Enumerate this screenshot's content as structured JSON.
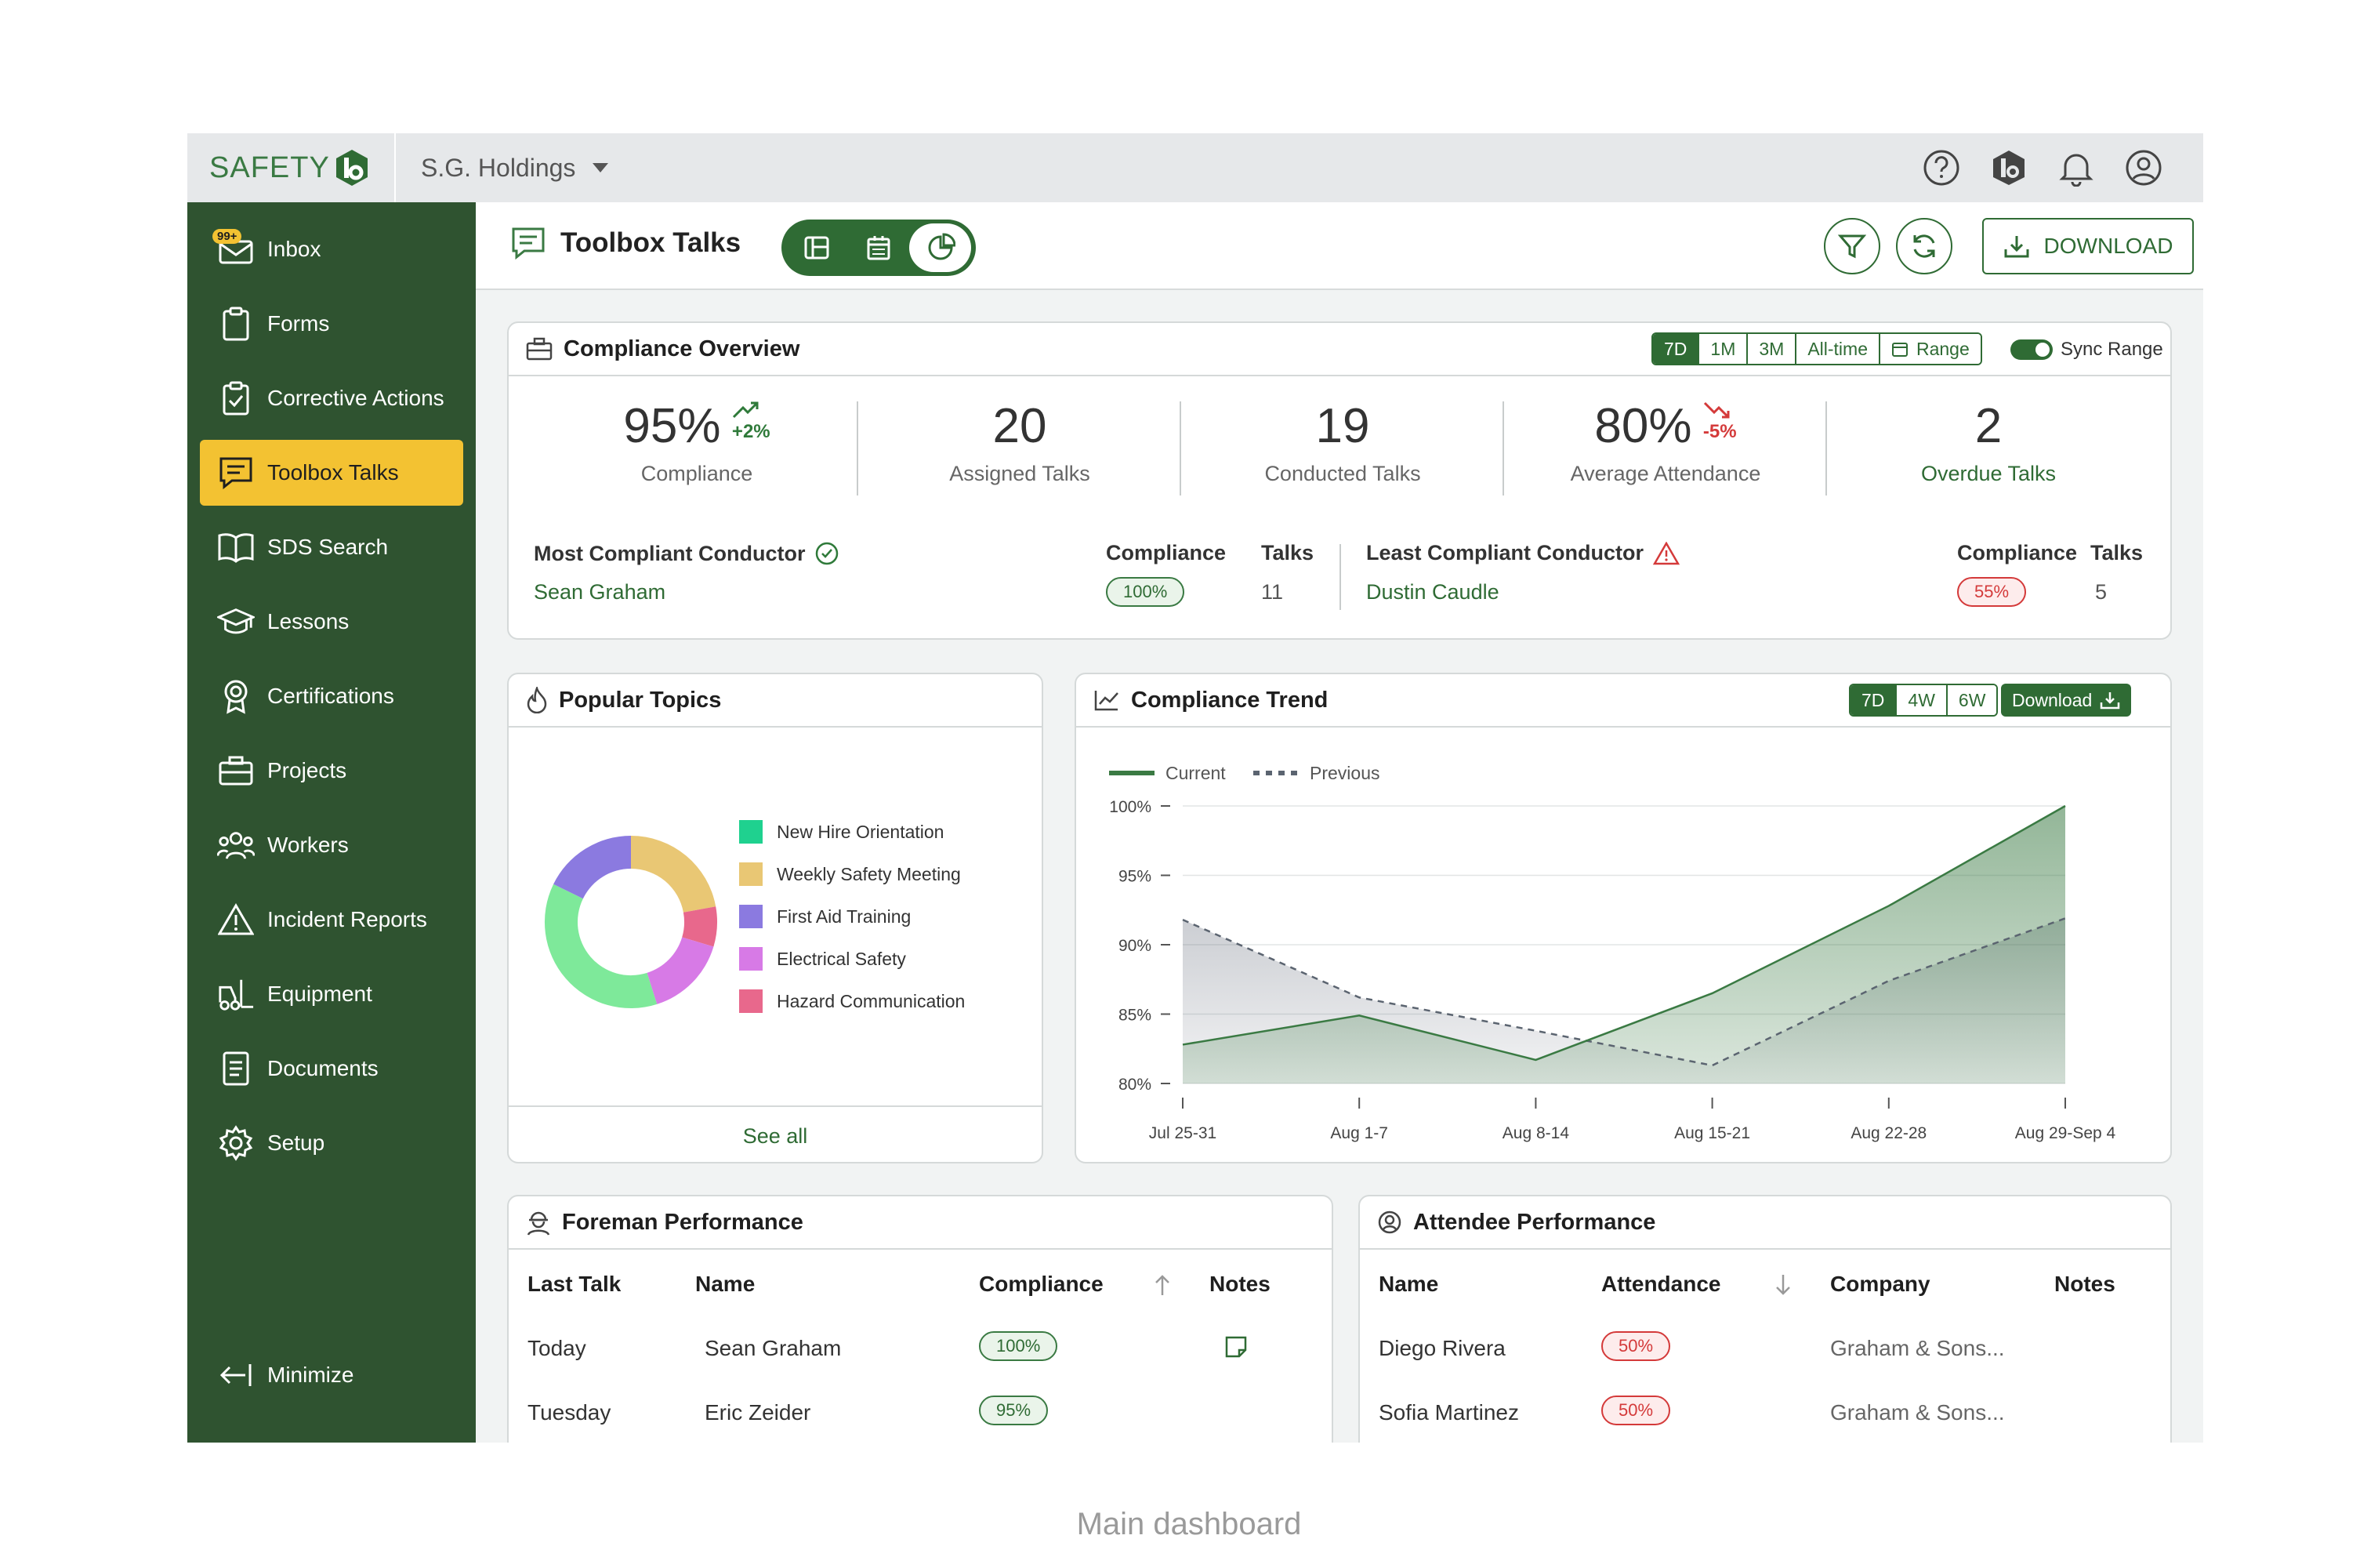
{
  "app": {
    "logo_text": "SAFETY",
    "org": "S.G. Holdings"
  },
  "sidebar": {
    "inbox_badge": "99+",
    "items": [
      {
        "label": "Inbox"
      },
      {
        "label": "Forms"
      },
      {
        "label": "Corrective Actions"
      },
      {
        "label": "Toolbox Talks"
      },
      {
        "label": "SDS Search"
      },
      {
        "label": "Lessons"
      },
      {
        "label": "Certifications"
      },
      {
        "label": "Projects"
      },
      {
        "label": "Workers"
      },
      {
        "label": "Incident Reports"
      },
      {
        "label": "Equipment"
      },
      {
        "label": "Documents"
      },
      {
        "label": "Setup"
      }
    ],
    "minimize": "Minimize"
  },
  "header": {
    "title": "Toolbox Talks",
    "download": "DOWNLOAD"
  },
  "overview": {
    "title": "Compliance Overview",
    "ranges": [
      "7D",
      "1M",
      "3M",
      "All-time",
      "Range"
    ],
    "sync": "Sync Range",
    "kpis": [
      {
        "value": "95%",
        "delta": "+2%",
        "label": "Compliance"
      },
      {
        "value": "20",
        "label": "Assigned Talks"
      },
      {
        "value": "19",
        "label": "Conducted Talks"
      },
      {
        "value": "80%",
        "delta": "-5%",
        "label": "Average Attendance"
      },
      {
        "value": "2",
        "label": "Overdue Talks"
      }
    ],
    "most": {
      "heading": "Most Compliant Conductor",
      "name": "Sean Graham",
      "compliance_h": "Compliance",
      "talks_h": "Talks",
      "compliance": "100%",
      "talks": "11"
    },
    "least": {
      "heading": "Least Compliant Conductor",
      "name": "Dustin Caudle",
      "compliance_h": "Compliance",
      "talks_h": "Talks",
      "compliance": "55%",
      "talks": "5"
    }
  },
  "topics": {
    "title": "Popular Topics",
    "see_all": "See all",
    "items": [
      {
        "label": "New Hire Orientation",
        "color": "#1fd18f"
      },
      {
        "label": "Weekly Safety Meeting",
        "color": "#e9c774"
      },
      {
        "label": "First Aid Training",
        "color": "#8b7ae0"
      },
      {
        "label": "Electrical Safety",
        "color": "#d77ae6"
      },
      {
        "label": "Hazard Communication",
        "color": "#e8688c"
      }
    ],
    "donut_colors": {
      "orientation": "#7ee99a",
      "weekly": "#e9c774",
      "first_aid": "#8b7ae0",
      "electrical": "#d77ae6",
      "hazard": "#e8688c"
    }
  },
  "trend": {
    "title": "Compliance Trend",
    "ranges": [
      "7D",
      "4W",
      "6W"
    ],
    "download": "Download",
    "legend_current": "Current",
    "legend_previous": "Previous"
  },
  "chart_data": {
    "type": "area",
    "categories": [
      "Jul 25-31",
      "Aug 1-7",
      "Aug 8-14",
      "Aug 15-21",
      "Aug 22-28",
      "Aug 29-Sep 4"
    ],
    "series": [
      {
        "name": "Current",
        "values": [
          82.8,
          84.9,
          81.7,
          86.5,
          92.8,
          100
        ],
        "color": "#3a7a43"
      },
      {
        "name": "Previous",
        "values": [
          91.8,
          86.2,
          83.8,
          81.3,
          87.4,
          91.9
        ],
        "color": "#5b6470"
      }
    ],
    "yticks": [
      "100%",
      "95%",
      "90%",
      "85%",
      "80%"
    ],
    "ylim": [
      80,
      100
    ]
  },
  "foreman": {
    "title": "Foreman Performance",
    "headers": [
      "Last Talk",
      "Name",
      "Compliance",
      "Notes"
    ],
    "rows": [
      {
        "last": "Today",
        "name": "Sean Graham",
        "compliance": "100%"
      },
      {
        "last": "Tuesday",
        "name": "Eric Zeider",
        "compliance": "95%"
      }
    ]
  },
  "attendee": {
    "title": "Attendee Performance",
    "headers": [
      "Name",
      "Attendance",
      "Company",
      "Notes"
    ],
    "rows": [
      {
        "name": "Diego Rivera",
        "attendance": "50%",
        "company": "Graham & Sons..."
      },
      {
        "name": "Sofia Martinez",
        "attendance": "50%",
        "company": "Graham & Sons..."
      }
    ]
  },
  "caption": "Main dashboard"
}
